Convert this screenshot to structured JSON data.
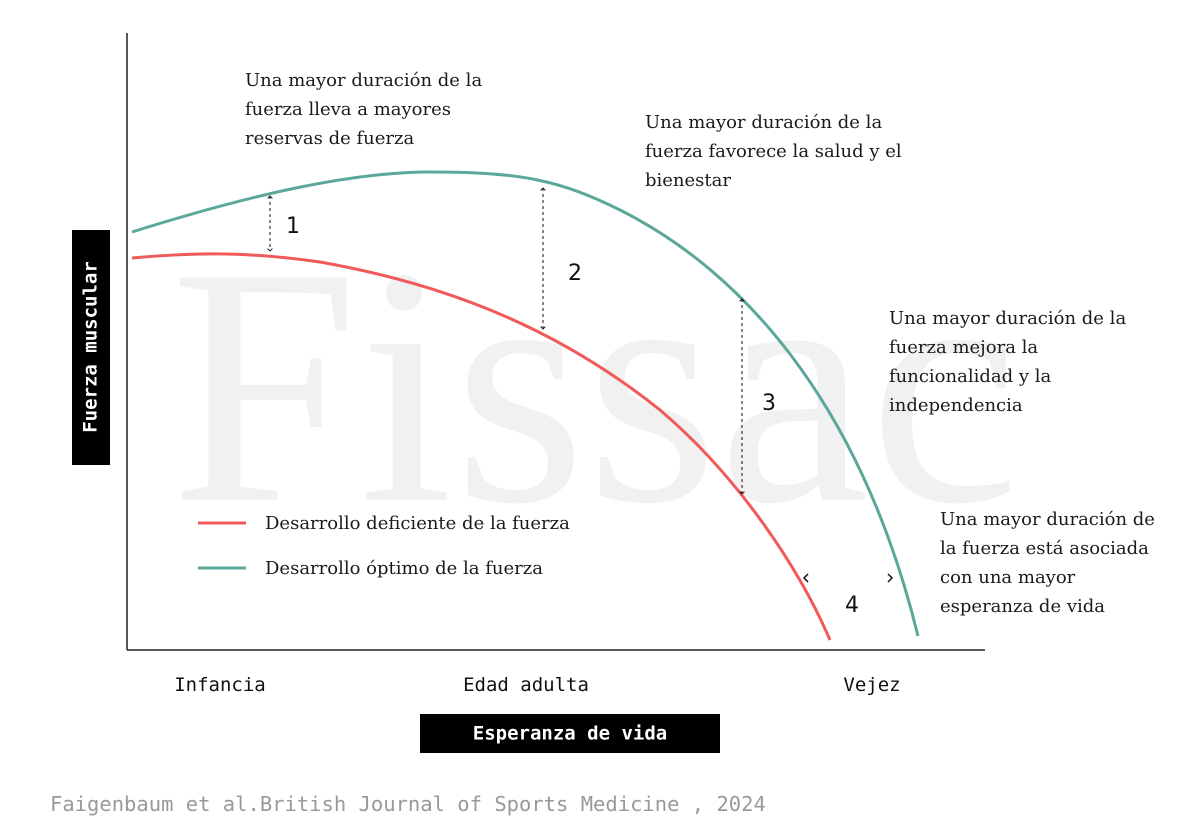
{
  "watermark": "Fissac",
  "y_axis": {
    "label": "Fuerza muscular"
  },
  "x_axis": {
    "label": "Esperanza de vida",
    "labels": [
      "Infancia",
      "Edad adulta",
      "Vejez"
    ]
  },
  "annotations": [
    {
      "lines": [
        "Una mayor duración de la",
        "fuerza lleva a mayores",
        "reservas de fuerza"
      ]
    },
    {
      "lines": [
        "Una mayor duración de la",
        "fuerza favorece la salud y el",
        "bienestar"
      ]
    },
    {
      "lines": [
        "Una mayor duración de la",
        "fuerza mejora la",
        "funcionalidad y la",
        "independencia"
      ]
    },
    {
      "lines": [
        "Una mayor duración de",
        "la fuerza está asociada",
        "con una mayor",
        "esperanza de vida"
      ]
    }
  ],
  "markers": [
    "1",
    "2",
    "3",
    "4"
  ],
  "legend": [
    {
      "label": "Desarrollo deficiente de la fuerza",
      "color": "#f05a5b"
    },
    {
      "label": "Desarrollo óptimo de la fuerza",
      "color": "#5ba89a"
    }
  ],
  "source": "Faigenbaum et al.British Journal of Sports Medicine , 2024"
}
